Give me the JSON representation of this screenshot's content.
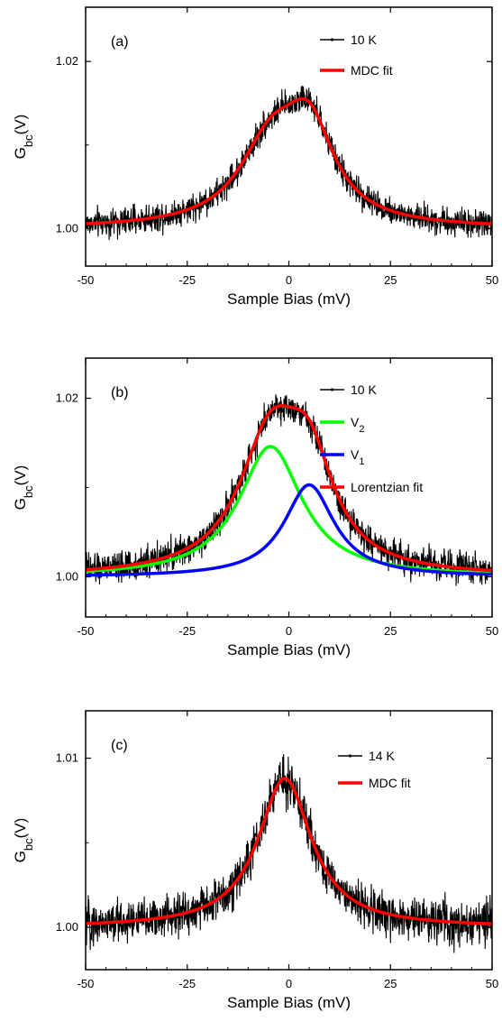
{
  "chart_data": [
    {
      "type": "line",
      "panel_label": "(a)",
      "xlabel": "Sample Bias (mV)",
      "ylabel_main": "G",
      "ylabel_sub": "bc",
      "ylabel_tail": "(V)",
      "xlim": [
        -50,
        50
      ],
      "ylim": [
        0.9955,
        1.0265
      ],
      "xticks": [
        -50,
        -25,
        0,
        25,
        50
      ],
      "yticks": [
        1.0,
        1.02
      ],
      "ytick_labels": [
        "1.00",
        "1.02"
      ],
      "series": [
        {
          "name": "10 K",
          "color": "#000000",
          "kind": "noisy",
          "noise": 0.0012,
          "model": {
            "type": "sum",
            "baseline": 1.0,
            "components": [
              {
                "a": 0.0093,
                "c": -4.5,
                "w": 9.5
              },
              {
                "a": 0.0105,
                "c": 5.0,
                "w": 7.5
              }
            ]
          }
        },
        {
          "name": "MDC fit",
          "color": "#ff0000",
          "kind": "smooth",
          "model": {
            "type": "sum",
            "baseline": 1.0,
            "components": [
              {
                "a": 0.0093,
                "c": -4.5,
                "w": 9.5
              },
              {
                "a": 0.0105,
                "c": 5.0,
                "w": 7.5
              }
            ]
          }
        }
      ]
    },
    {
      "type": "line",
      "panel_label": "(b)",
      "xlabel": "Sample Bias (mV)",
      "ylabel_main": "G",
      "ylabel_sub": "bc",
      "ylabel_tail": "(V)",
      "xlim": [
        -50,
        50
      ],
      "ylim": [
        0.9955,
        1.0245
      ],
      "xticks": [
        -50,
        -25,
        0,
        25,
        50
      ],
      "yticks": [
        1.0,
        1.02
      ],
      "ytick_labels": [
        "1.00",
        "1.02"
      ],
      "series": [
        {
          "name": "10 K",
          "color": "#000000",
          "kind": "noisy",
          "noise": 0.0012,
          "model": {
            "type": "sum",
            "baseline": 1.0,
            "components": [
              {
                "a": 0.0146,
                "c": -4.5,
                "w": 9.5
              },
              {
                "a": 0.0103,
                "c": 5.0,
                "w": 7.5
              }
            ]
          }
        },
        {
          "name": "V",
          "sub": "2",
          "color": "#00ff00",
          "kind": "smooth",
          "model": {
            "type": "sum",
            "baseline": 1.0,
            "components": [
              {
                "a": 0.0146,
                "c": -4.5,
                "w": 9.5
              }
            ]
          }
        },
        {
          "name": "V",
          "sub": "1",
          "color": "#0000ff",
          "kind": "smooth",
          "model": {
            "type": "sum",
            "baseline": 1.0,
            "components": [
              {
                "a": 0.0103,
                "c": 5.0,
                "w": 7.5
              }
            ]
          }
        },
        {
          "name": "Lorentzian fit",
          "color": "#ff0000",
          "kind": "smooth",
          "model": {
            "type": "sum",
            "baseline": 1.0,
            "components": [
              {
                "a": 0.0146,
                "c": -4.5,
                "w": 9.5
              },
              {
                "a": 0.0103,
                "c": 5.0,
                "w": 7.5
              }
            ]
          }
        }
      ]
    },
    {
      "type": "line",
      "panel_label": "(c)",
      "xlabel": "Sample Bias (mV)",
      "ylabel_main": "G",
      "ylabel_sub": "bc",
      "ylabel_tail": "(V)",
      "xlim": [
        -50,
        50
      ],
      "ylim": [
        0.9975,
        1.0128
      ],
      "xticks": [
        -50,
        -25,
        0,
        25,
        50
      ],
      "yticks": [
        1.0,
        1.01
      ],
      "ytick_labels": [
        "1.00",
        "1.01"
      ],
      "series": [
        {
          "name": "14 K",
          "color": "#000000",
          "kind": "noisy",
          "noise": 0.0009,
          "model": {
            "type": "sum",
            "baseline": 1.0,
            "components": [
              {
                "a": 0.0088,
                "c": -1.0,
                "w": 8.0
              }
            ]
          }
        },
        {
          "name": "MDC fit",
          "color": "#ff0000",
          "kind": "smooth",
          "model": {
            "type": "sum",
            "baseline": 1.0,
            "components": [
              {
                "a": 0.0088,
                "c": -1.0,
                "w": 8.0
              }
            ]
          }
        }
      ]
    }
  ]
}
